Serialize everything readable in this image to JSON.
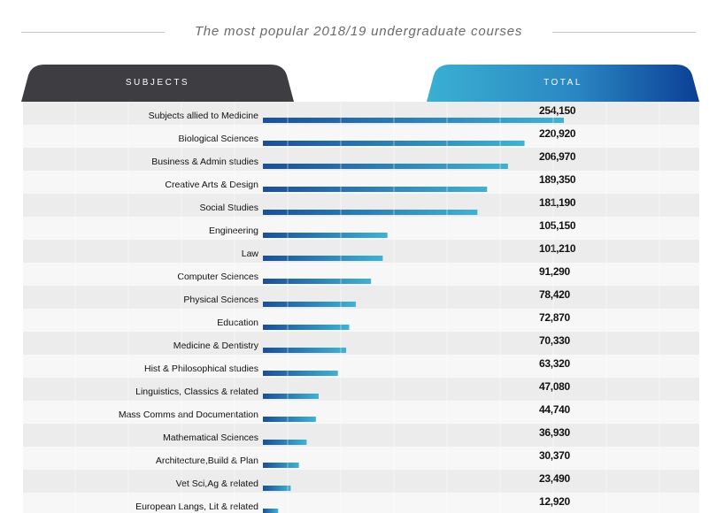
{
  "title": "The most popular 2018/19 undergraduate courses",
  "headers": {
    "subjects": "SUBJECTS",
    "total": "TOTAL"
  },
  "colors": {
    "bar_start": "#1a4f9a",
    "bar_end": "#3fb2d4",
    "tab_dark": "#3d3d42",
    "tab_light": "#3ab0d2",
    "tab_deep": "#0b3f95"
  },
  "chart_data": {
    "type": "bar",
    "orientation": "horizontal",
    "title": "The most popular 2018/19 undergraduate courses",
    "xlabel": "",
    "ylabel": "",
    "xlim": [
      0,
      254150
    ],
    "categories": [
      "Subjects allied to Medicine",
      "Biological Sciences",
      "Business & Admin studies",
      "Creative Arts & Design",
      "Social Studies",
      "Engineering",
      "Law",
      "Computer Sciences",
      "Physical Sciences",
      "Education",
      "Medicine & Dentistry",
      "Hist & Philosophical studies",
      "Linguistics, Classics & related",
      "Mass Comms and Documentation",
      "Mathematical Sciences",
      "Architecture,Build & Plan",
      "Vet Sci,Ag & related",
      "European Langs, Lit & related"
    ],
    "values": [
      254150,
      220920,
      206970,
      189350,
      181190,
      105150,
      101210,
      91290,
      78420,
      72870,
      70330,
      63320,
      47080,
      44740,
      36930,
      30370,
      23490,
      12920
    ],
    "value_labels": [
      "254,150",
      "220,920",
      "206,970",
      "189,350",
      "181,190",
      "105,150",
      "101,210",
      "91,290",
      "78,420",
      "72,870",
      "70,330",
      "63,320",
      "47,080",
      "44,740",
      "36,930",
      "30,370",
      "23,490",
      "12,920"
    ]
  }
}
